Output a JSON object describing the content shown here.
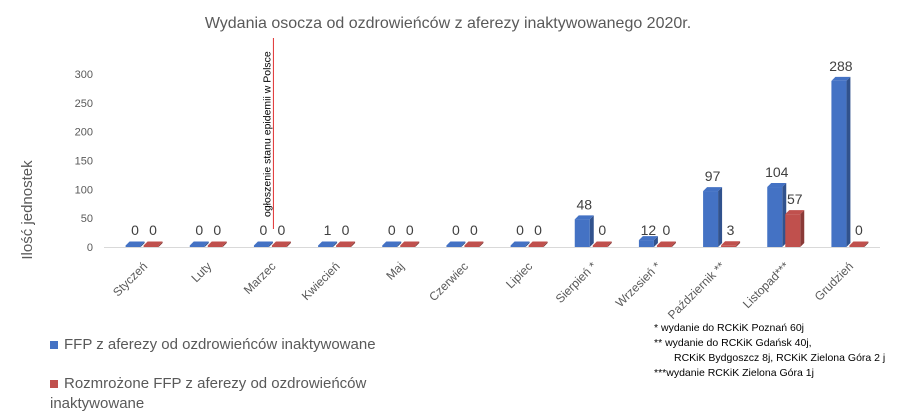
{
  "chart_data": {
    "type": "bar",
    "title": "Wydania osocza od ozdrowieńców z aferezy inaktywowanego 2020r.",
    "ylabel": "Ilość jednostek",
    "xlabel": "",
    "ylim": [
      0,
      300
    ],
    "yticks": [
      0,
      50,
      100,
      150,
      200,
      250,
      300
    ],
    "categories": [
      "Styczeń",
      "Luty",
      "Marzec",
      "Kwiecień",
      "Maj",
      "Czerwiec",
      "Lipiec",
      "Sierpień *",
      "Wrzesień *",
      "Październik **",
      "Listopad***",
      "Grudzień"
    ],
    "series": [
      {
        "name": "FFP z aferezy od ozdrowieńców inaktywowane",
        "color": "#4472C4",
        "values": [
          0,
          0,
          0,
          1,
          0,
          0,
          0,
          48,
          12,
          97,
          104,
          288
        ]
      },
      {
        "name": "Rozmrożone FFP z aferezy od ozdrowieńców inaktywowane",
        "color": "#C0504D",
        "values": [
          0,
          0,
          0,
          0,
          0,
          0,
          0,
          0,
          0,
          3,
          57,
          0
        ]
      }
    ],
    "annotation": {
      "text": "ogłoszenie stanu epidemii w Polsce",
      "category": "Marzec"
    },
    "notes": [
      "* wydanie do RCKiK Poznań 60j",
      "** wydanie do RCKiK Gdańsk 40j,",
      "RCKiK Bydgoszcz 8j, RCKiK Zielona Góra 2 j",
      "***wydanie RCKiK Zielona Góra 1j"
    ],
    "legend_position": "bottom-left",
    "grid": false
  }
}
